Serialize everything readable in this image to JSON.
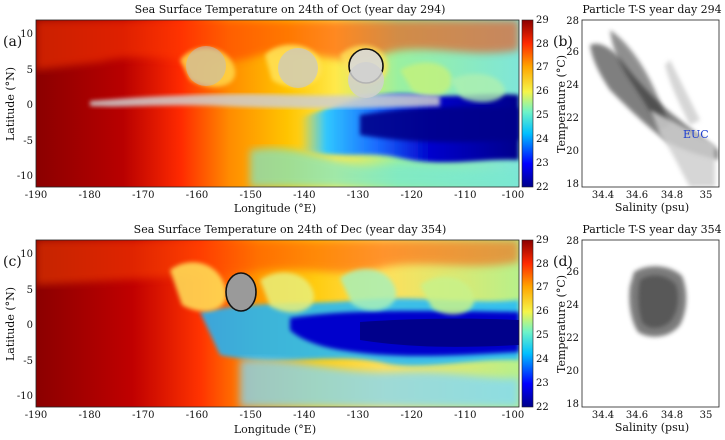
{
  "figure": {
    "panel_a": {
      "letter": "(a)",
      "title": "Sea Surface Temperature on 24th of Oct (year day 294)",
      "xlabel": "Longitude (°E)",
      "ylabel": "Latitude (°N)",
      "xticks": [
        "-190",
        "-180",
        "-170",
        "-160",
        "-150",
        "-140",
        "-130",
        "-120",
        "-110",
        "-100"
      ],
      "yticks": [
        "10",
        "5",
        "0",
        "-5",
        "-10"
      ]
    },
    "panel_b": {
      "letter": "(b)",
      "title": "Particle T-S year day 294",
      "xlabel": "Salinity (psu)",
      "ylabel": "Temperature (°C)",
      "xticks": [
        "34.4",
        "34.6",
        "34.8",
        "35"
      ],
      "yticks": [
        "28",
        "26",
        "24",
        "22",
        "20",
        "18"
      ],
      "annotation": "EUC"
    },
    "panel_c": {
      "letter": "(c)",
      "title": "Sea Surface Temperature on 24th of Dec (year day 354)",
      "xlabel": "Longitude (°E)",
      "ylabel": "Latitude (°N)",
      "xticks": [
        "-190",
        "-180",
        "-170",
        "-160",
        "-150",
        "-140",
        "-130",
        "-120",
        "-110",
        "-100"
      ],
      "yticks": [
        "10",
        "5",
        "0",
        "-5",
        "-10"
      ]
    },
    "panel_d": {
      "letter": "(d)",
      "title": "Particle T-S year day 354",
      "xlabel": "Salinity (psu)",
      "ylabel": "Temperature (°C)",
      "xticks": [
        "34.4",
        "34.6",
        "34.8",
        "35"
      ],
      "yticks": [
        "28",
        "26",
        "24",
        "22",
        "20",
        "18"
      ]
    },
    "colorbar_ticks": [
      "29",
      "28",
      "27",
      "26",
      "25",
      "24",
      "23",
      "22"
    ],
    "colors": {
      "warm": "#8b0000",
      "cold": "#00008b",
      "euc_label": "#1f3fd0"
    }
  }
}
